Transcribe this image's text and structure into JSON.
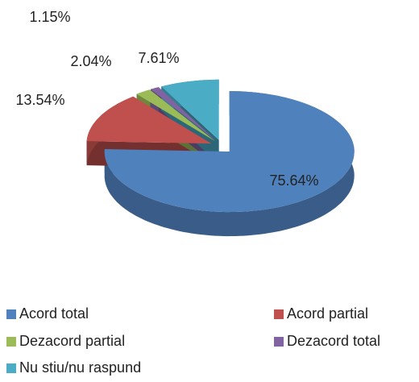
{
  "chart_data": {
    "type": "pie",
    "categories": [
      "Acord total",
      "Acord partial",
      "Dezacord partial",
      "Dezacord total",
      "Nu stiu/nu raspund"
    ],
    "values": [
      75.64,
      13.54,
      2.04,
      1.15,
      7.61
    ],
    "value_labels": [
      "75.64%",
      "13.54%",
      "2.04%",
      "1.15%",
      "7.61%"
    ],
    "colors": [
      "#4f81bd",
      "#c0504d",
      "#9bbb59",
      "#8064a2",
      "#4bacc6"
    ],
    "legend": "bottom"
  }
}
